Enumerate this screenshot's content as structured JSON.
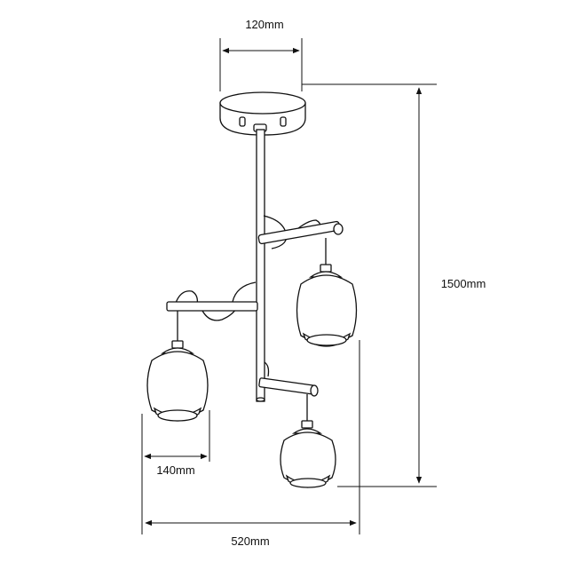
{
  "dimensions": {
    "canopy_width": "120mm",
    "total_height": "1500mm",
    "shade_width": "140mm",
    "total_width": "520mm"
  }
}
